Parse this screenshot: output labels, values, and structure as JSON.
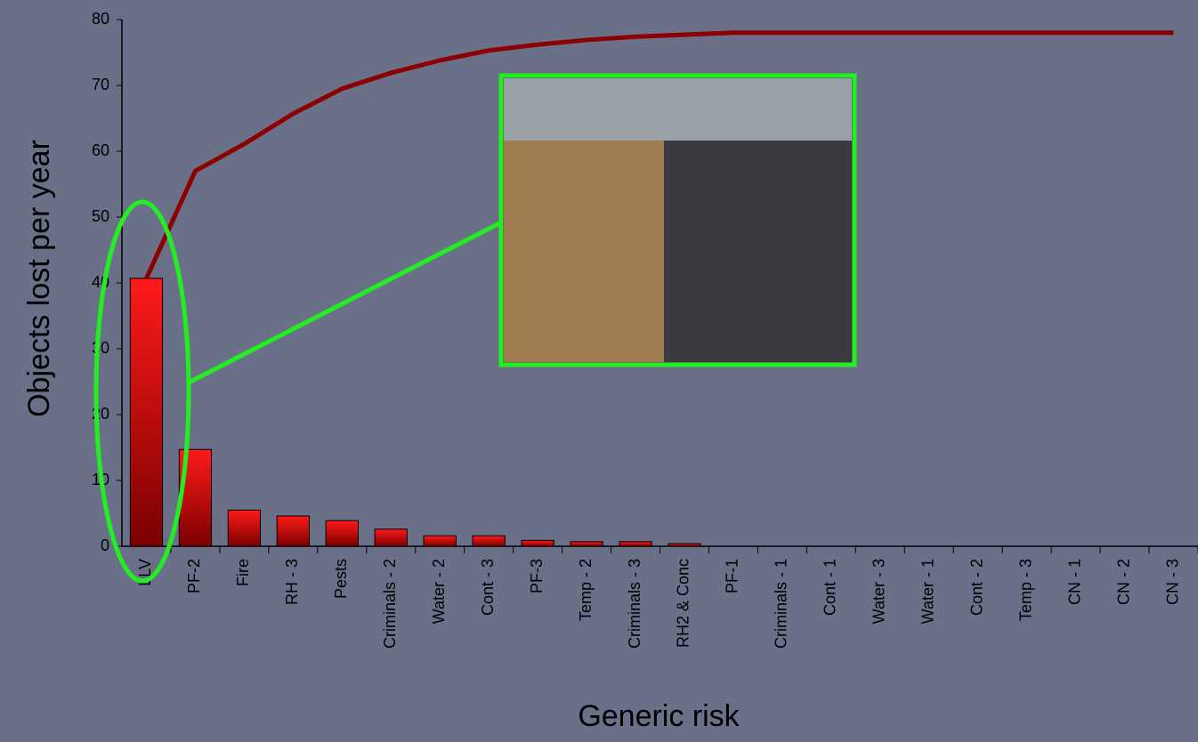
{
  "chart_data": {
    "type": "bar",
    "y_label": "Objects lost per year",
    "x_label": "Generic risk",
    "categories": [
      "LLV",
      "PF-2",
      "Fire",
      "RH - 3",
      "Pests",
      "Criminals - 2",
      "Water - 2",
      "Cont - 3",
      "PF-3",
      "Temp - 2",
      "Criminals - 3",
      "RH2 & Conc",
      "PF-1",
      "Criminals - 1",
      "Cont - 1",
      "Water - 3",
      "Water - 1",
      "Cont - 2",
      "Temp - 3",
      "CN - 1",
      "CN - 2",
      "CN - 3"
    ],
    "series": [
      {
        "type": "bar",
        "color": "#ff0000",
        "values": [
          40.7,
          14.7,
          5.5,
          4.6,
          3.9,
          2.6,
          1.6,
          1.6,
          0.9,
          0.7,
          0.7,
          0.4,
          0,
          0,
          0,
          0,
          0,
          0,
          0,
          0,
          0,
          0
        ]
      },
      {
        "type": "line",
        "color": "#8b0000",
        "values": [
          40.7,
          57.0,
          61.1,
          65.7,
          69.5,
          71.9,
          73.8,
          75.3,
          76.2,
          76.9,
          77.4,
          77.7,
          78,
          78,
          78,
          78,
          78,
          78,
          78,
          78,
          78,
          78
        ]
      }
    ],
    "ylim": [
      0,
      80
    ],
    "yticks": [
      0,
      10,
      20,
      30,
      40,
      50,
      60,
      70,
      80
    ],
    "grid": false
  }
}
